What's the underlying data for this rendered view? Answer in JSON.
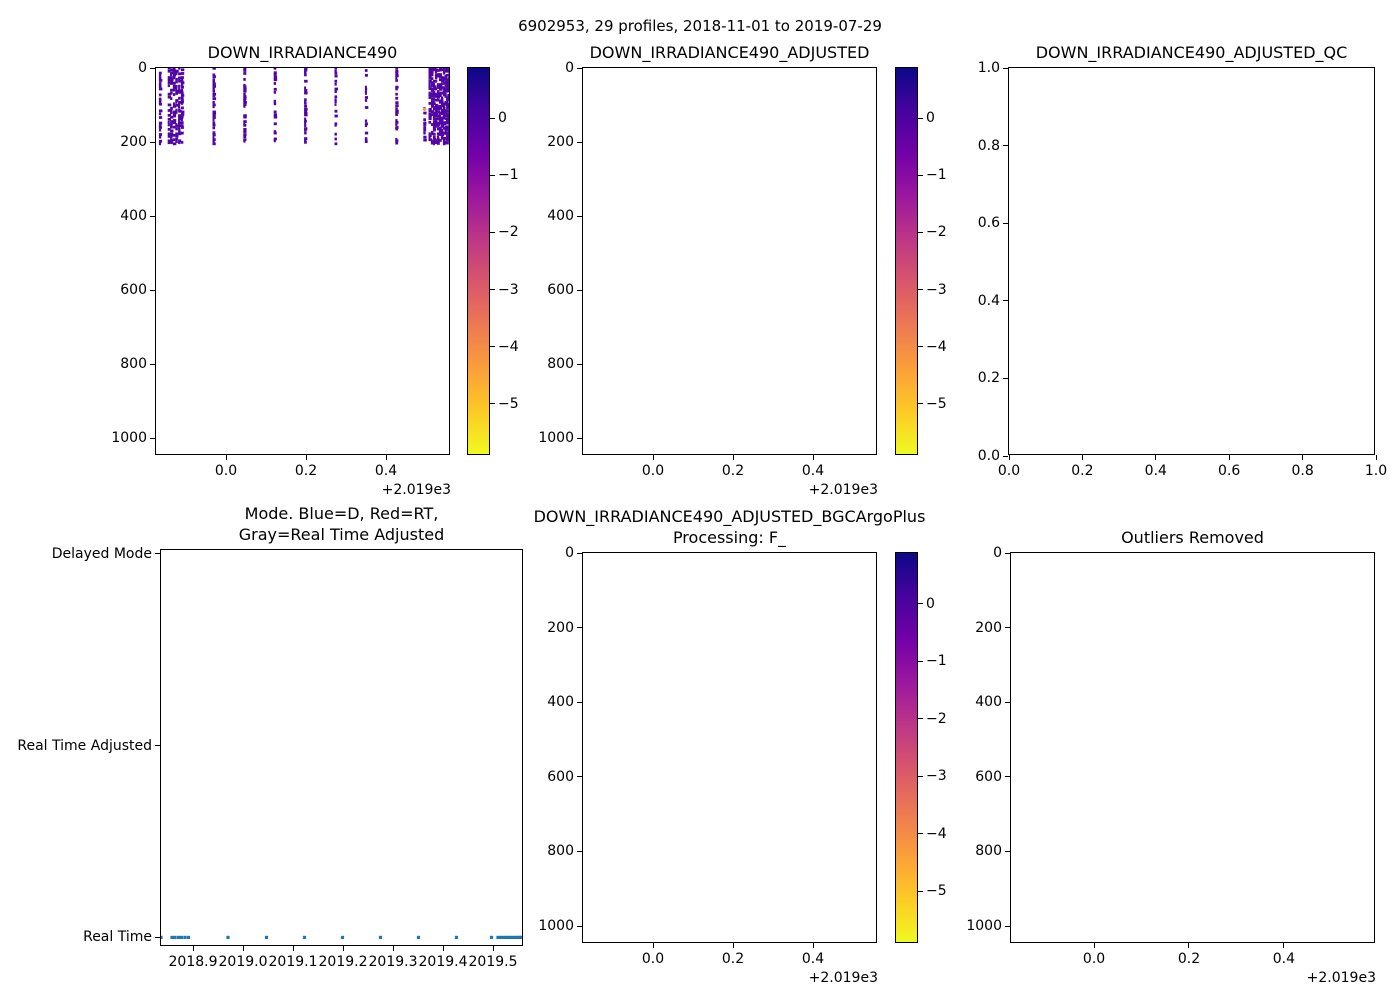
{
  "figure": {
    "suptitle": "6902953, 29 profiles, 2018-11-01 to 2019-07-29",
    "background": "#ffffff"
  },
  "palette": {
    "axis_color": "#000000",
    "text_color": "#000000",
    "profile_dot": "#5205a5",
    "outlier_dot": "#fb9f3a",
    "mode_dot": "#1f77b4",
    "plasma": [
      "#0d0887",
      "#46039f",
      "#7201a8",
      "#9c179e",
      "#bd3786",
      "#d8576b",
      "#ed7953",
      "#fb9f3a",
      "#fdca26",
      "#f0f921"
    ]
  },
  "chart_data": [
    {
      "id": "down_irradiance490",
      "type": "scatter",
      "title": "DOWN_IRRADIANCE490",
      "xlim": [
        2018.825,
        2019.5625
      ],
      "ylim": [
        0,
        1048
      ],
      "xticks": [
        2019.0,
        2019.2,
        2019.4
      ],
      "xtick_labels": [
        "0.0",
        "0.2",
        "0.4"
      ],
      "x_offset_text": "+2.019e3",
      "yticks": [
        0,
        200,
        400,
        600,
        800,
        1000
      ],
      "ytick_labels": [
        "0",
        "200",
        "400",
        "600",
        "800",
        "1000"
      ],
      "profiles_x_years": [
        2018.836,
        2018.858,
        2018.864,
        2018.871,
        2018.877,
        2018.884,
        2018.891,
        2018.97,
        2019.047,
        2019.123,
        2019.199,
        2019.275,
        2019.351,
        2019.427,
        2019.497,
        2019.51,
        2019.516,
        2019.521,
        2019.526,
        2019.531,
        2019.536,
        2019.541,
        2019.546,
        2019.55,
        2019.554,
        2019.557,
        2019.56,
        2019.562,
        2019.564
      ],
      "depth_min": 0,
      "depth_max": 205,
      "short_profile": {
        "x_year": 2019.497,
        "depth_start": 110
      },
      "point_value_log10": 0.2,
      "outlier_point": {
        "x_year": 2019.497,
        "depth": 112,
        "value_log10": -4
      },
      "colorbar": {
        "vmin": -5.9,
        "vmax": 0.9,
        "ticks": [
          0,
          -1,
          -2,
          -3,
          -4,
          -5
        ],
        "tick_labels": [
          "0",
          "−1",
          "−2",
          "−3",
          "−4",
          "−5"
        ],
        "colormap": "plasma"
      }
    },
    {
      "id": "down_irradiance490_adjusted",
      "type": "scatter",
      "title": "DOWN_IRRADIANCE490_ADJUSTED",
      "empty": true,
      "xlim": [
        2018.825,
        2019.5625
      ],
      "ylim": [
        0,
        1048
      ],
      "xticks": [
        2019.0,
        2019.2,
        2019.4
      ],
      "xtick_labels": [
        "0.0",
        "0.2",
        "0.4"
      ],
      "x_offset_text": "+2.019e3",
      "yticks": [
        0,
        200,
        400,
        600,
        800,
        1000
      ],
      "ytick_labels": [
        "0",
        "200",
        "400",
        "600",
        "800",
        "1000"
      ],
      "colorbar": {
        "vmin": -5.9,
        "vmax": 0.9,
        "ticks": [
          0,
          -1,
          -2,
          -3,
          -4,
          -5
        ],
        "tick_labels": [
          "0",
          "−1",
          "−2",
          "−3",
          "−4",
          "−5"
        ],
        "colormap": "plasma"
      }
    },
    {
      "id": "down_irradiance490_adjusted_qc",
      "type": "scatter",
      "title": "DOWN_IRRADIANCE490_ADJUSTED_QC",
      "empty": true,
      "xlim": [
        0,
        1
      ],
      "ylim": [
        1,
        0
      ],
      "xticks": [
        0.0,
        0.2,
        0.4,
        0.6,
        0.8,
        1.0
      ],
      "xtick_labels": [
        "0.0",
        "0.2",
        "0.4",
        "0.6",
        "0.8",
        "1.0"
      ],
      "yticks": [
        1.0,
        0.8,
        0.6,
        0.4,
        0.2,
        0.0
      ],
      "ytick_labels": [
        "1.0",
        "0.8",
        "0.6",
        "0.4",
        "0.2",
        "0.0"
      ]
    },
    {
      "id": "mode",
      "type": "scatter",
      "title": "Mode. Blue=D, Red=RT,\nGray=Real Time Adjusted",
      "xlim": [
        2018.836,
        2019.562
      ],
      "ylim": [
        -0.02,
        2.05
      ],
      "xticks": [
        2018.9,
        2019.0,
        2019.1,
        2019.2,
        2019.3,
        2019.4,
        2019.5
      ],
      "xtick_labels": [
        "2018.9",
        "2019.0",
        "2019.1",
        "2019.2",
        "2019.3",
        "2019.4",
        "2019.5"
      ],
      "categories": [
        "Delayed Mode",
        "Real Time Adjusted",
        "Real Time"
      ],
      "category_values": [
        0,
        1,
        2
      ],
      "points_category": "Real Time",
      "profiles_x_years": [
        2018.836,
        2018.858,
        2018.864,
        2018.871,
        2018.877,
        2018.884,
        2018.891,
        2018.97,
        2019.047,
        2019.123,
        2019.199,
        2019.275,
        2019.351,
        2019.427,
        2019.497,
        2019.51,
        2019.516,
        2019.521,
        2019.526,
        2019.531,
        2019.536,
        2019.541,
        2019.546,
        2019.55,
        2019.554,
        2019.557,
        2019.56,
        2019.562,
        2019.564
      ]
    },
    {
      "id": "bgcargoplus",
      "type": "scatter",
      "title": "DOWN_IRRADIANCE490_ADJUSTED_BGCArgoPlus\nProcessing: F_",
      "empty": true,
      "xlim": [
        2018.825,
        2019.5625
      ],
      "ylim": [
        0,
        1048
      ],
      "xticks": [
        2019.0,
        2019.2,
        2019.4
      ],
      "xtick_labels": [
        "0.0",
        "0.2",
        "0.4"
      ],
      "x_offset_text": "+2.019e3",
      "yticks": [
        0,
        200,
        400,
        600,
        800,
        1000
      ],
      "ytick_labels": [
        "0",
        "200",
        "400",
        "600",
        "800",
        "1000"
      ],
      "colorbar": {
        "vmin": -5.9,
        "vmax": 0.9,
        "ticks": [
          0,
          -1,
          -2,
          -3,
          -4,
          -5
        ],
        "tick_labels": [
          "0",
          "−1",
          "−2",
          "−3",
          "−4",
          "−5"
        ],
        "colormap": "plasma"
      }
    },
    {
      "id": "outliers_removed",
      "type": "scatter",
      "title": "Outliers Removed",
      "empty": true,
      "xlim": [
        2018.825,
        2019.594
      ],
      "ylim": [
        0,
        1048
      ],
      "xticks": [
        2019.0,
        2019.2,
        2019.4
      ],
      "xtick_labels": [
        "0.0",
        "0.2",
        "0.4"
      ],
      "x_offset_text": "+2.019e3",
      "yticks": [
        0,
        200,
        400,
        600,
        800,
        1000
      ],
      "ytick_labels": [
        "0",
        "200",
        "400",
        "600",
        "800",
        "1000"
      ]
    }
  ]
}
